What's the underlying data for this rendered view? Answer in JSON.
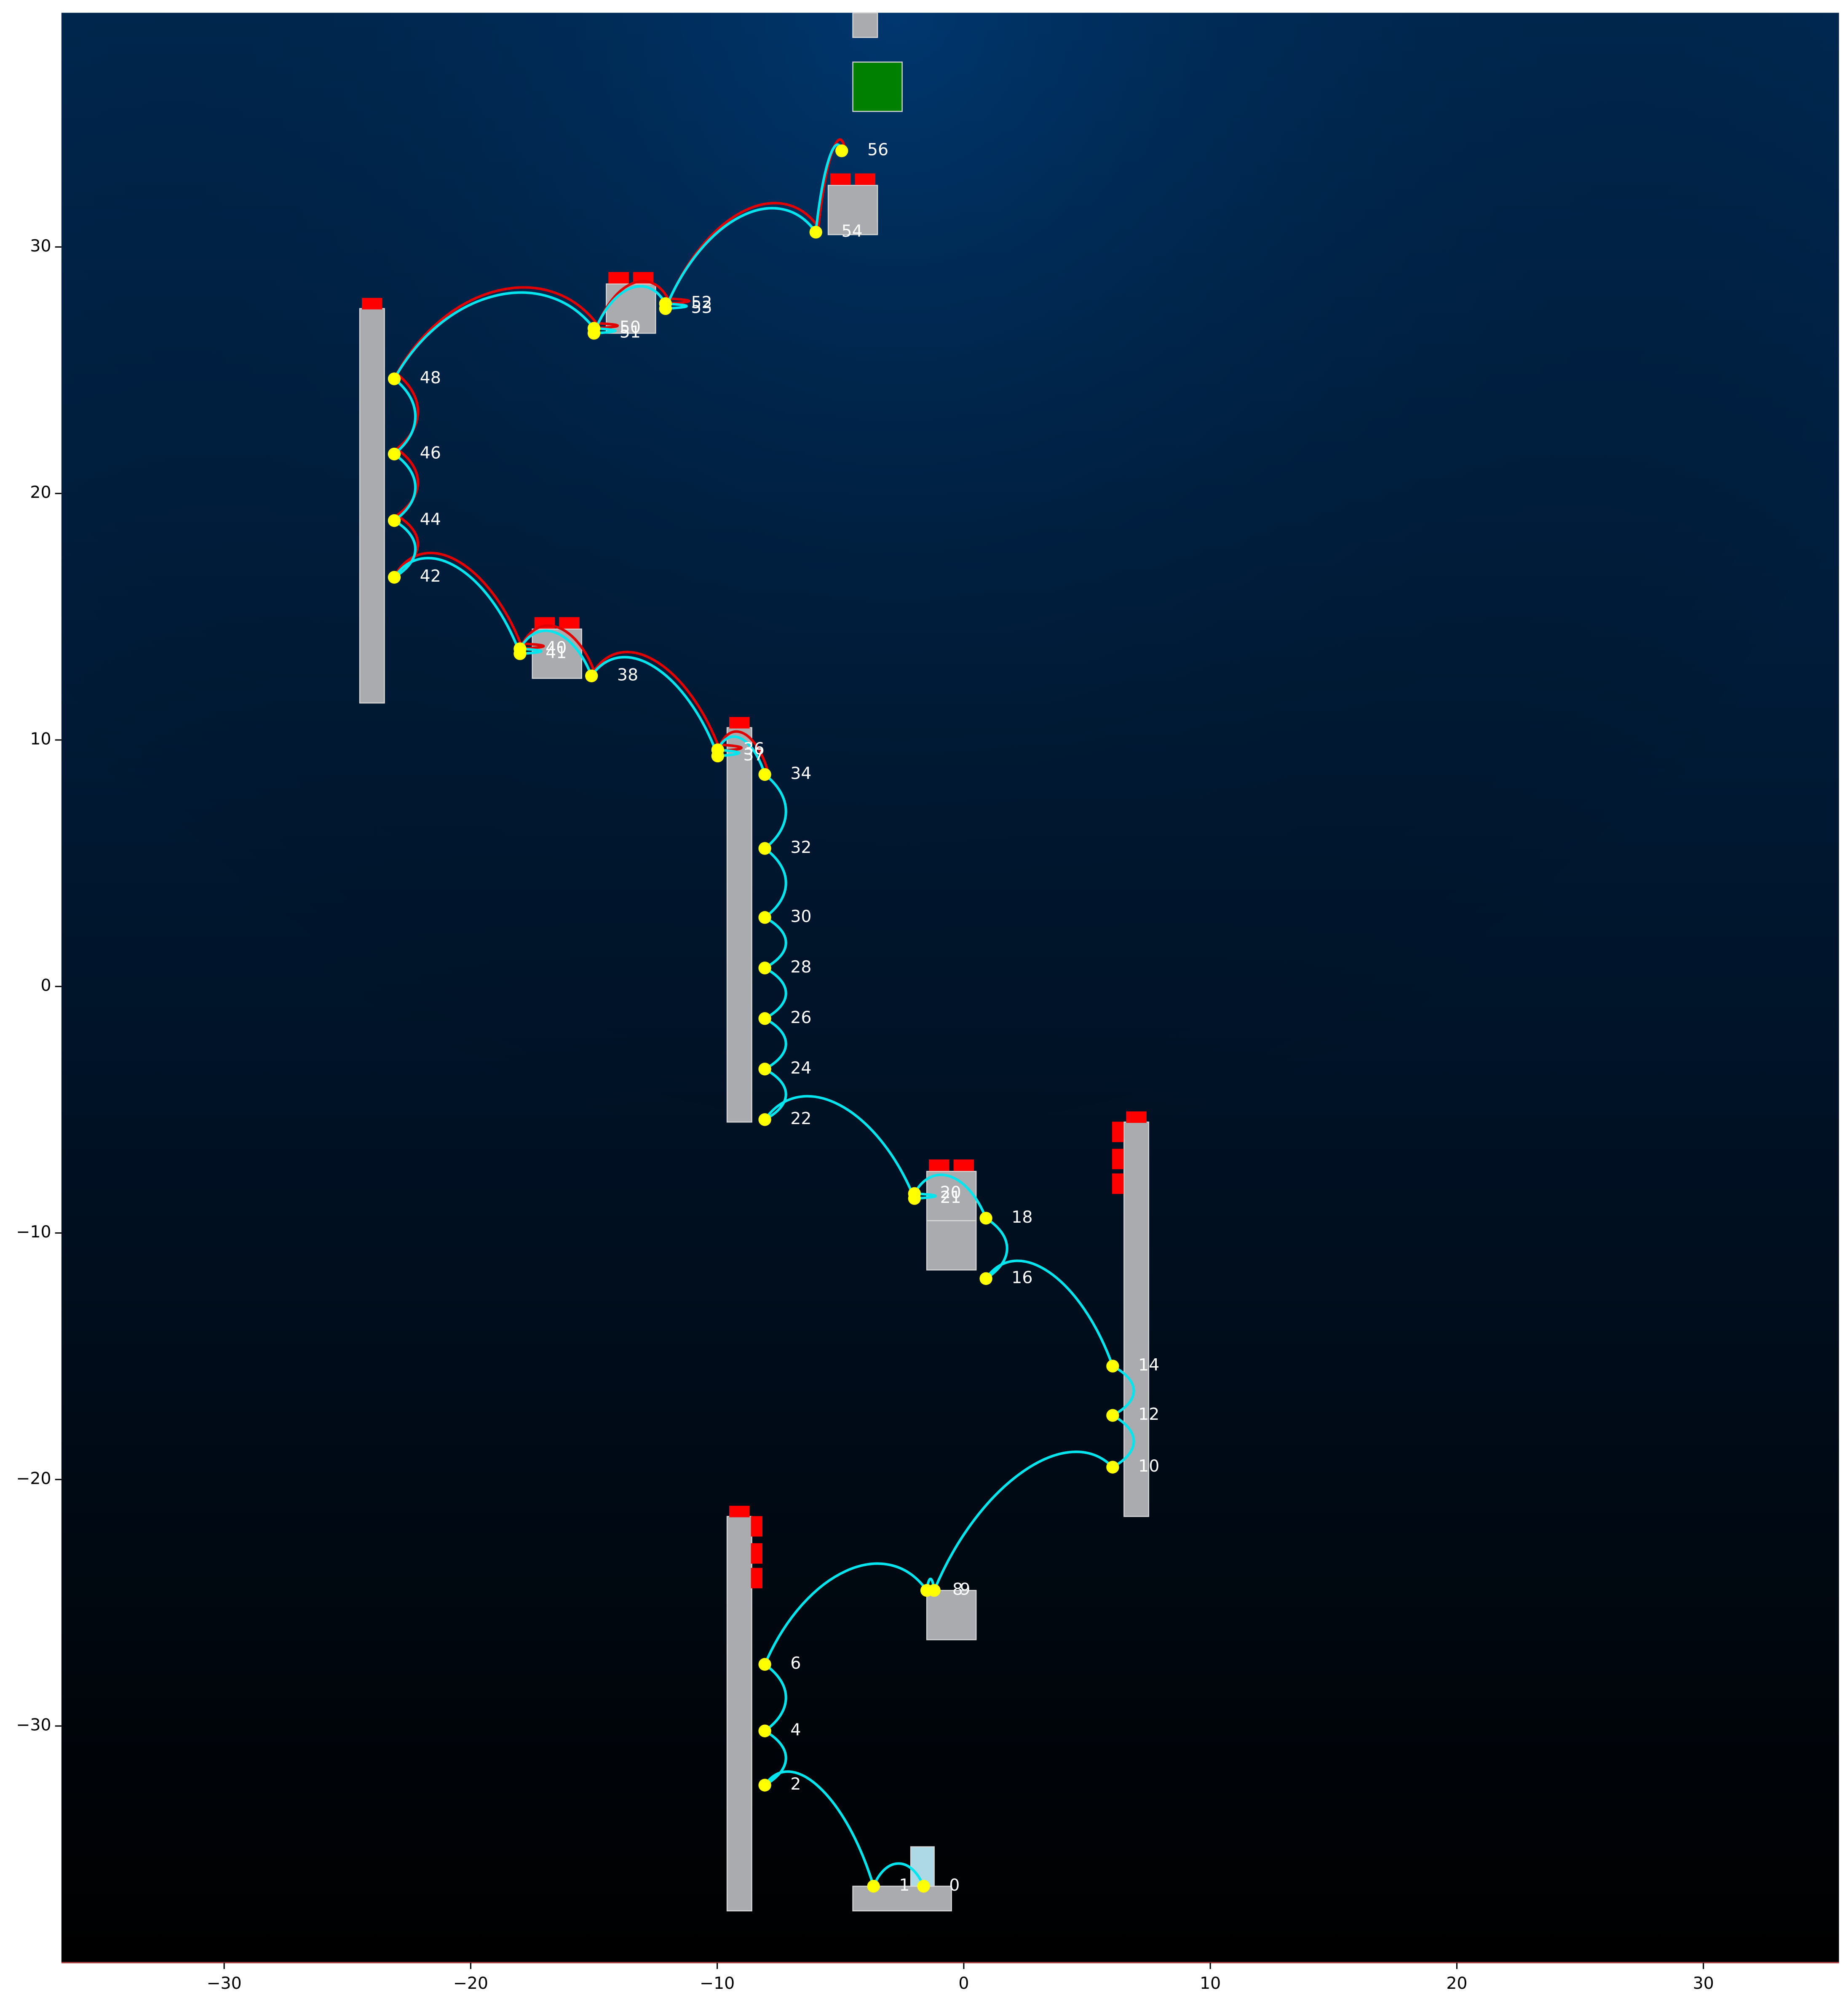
{
  "chart_data": {
    "type": "scatter",
    "xlim": [
      -36.6,
      35.5
    ],
    "ylim": [
      -39.6,
      39.5
    ],
    "xticks": [
      {
        "value": -30,
        "label": "−30"
      },
      {
        "value": -20,
        "label": "−20"
      },
      {
        "value": -10,
        "label": "−10"
      },
      0,
      10,
      20,
      30
    ],
    "yticks": [
      {
        "value": -30,
        "label": "−30"
      },
      {
        "value": -20,
        "label": "−20"
      },
      {
        "value": -10,
        "label": "−10"
      },
      0,
      10,
      20,
      30
    ],
    "line_color": "#00e5ee",
    "alt_line_color": "#e00000",
    "alt_line_from": 20,
    "point_color": "#ffff00",
    "label_color": "#ffffff",
    "points": [
      {
        "label": "0",
        "x": -1.63,
        "y": -36.5
      },
      {
        "label": "1",
        "x": -3.66,
        "y": -36.5
      },
      {
        "label": "2",
        "x": -8.07,
        "y": -32.4
      },
      {
        "label": "4",
        "x": -8.07,
        "y": -30.2
      },
      {
        "label": "6",
        "x": -8.07,
        "y": -27.5
      },
      {
        "label": "8",
        "x": -1.5,
        "y": -24.5
      },
      {
        "label": "9",
        "x": -1.2,
        "y": -24.5
      },
      {
        "label": "10",
        "x": 6.04,
        "y": -19.5
      },
      {
        "label": "12",
        "x": 6.04,
        "y": -17.4
      },
      {
        "label": "14",
        "x": 6.04,
        "y": -15.4
      },
      {
        "label": "16",
        "x": 0.9,
        "y": -11.85
      },
      {
        "label": "18",
        "x": 0.9,
        "y": -9.4
      },
      {
        "label": "20",
        "x": -2.0,
        "y": -8.4
      },
      {
        "label": "21",
        "x": -2.0,
        "y": -8.6
      },
      {
        "label": "22",
        "x": -8.07,
        "y": -5.4
      },
      {
        "label": "24",
        "x": -8.07,
        "y": -3.35
      },
      {
        "label": "26",
        "x": -8.07,
        "y": -1.3
      },
      {
        "label": "28",
        "x": -8.07,
        "y": 0.75
      },
      {
        "label": "30",
        "x": -8.07,
        "y": 2.8
      },
      {
        "label": "32",
        "x": -8.07,
        "y": 5.6
      },
      {
        "label": "34",
        "x": -8.07,
        "y": 8.6
      },
      {
        "label": "36",
        "x": -9.98,
        "y": 9.6
      },
      {
        "label": "37",
        "x": -9.98,
        "y": 9.35
      },
      {
        "label": "38",
        "x": -15.1,
        "y": 12.6
      },
      {
        "label": "40",
        "x": -18.0,
        "y": 13.7
      },
      {
        "label": "41",
        "x": -18.0,
        "y": 13.5
      },
      {
        "label": "42",
        "x": -23.1,
        "y": 16.6
      },
      {
        "label": "44",
        "x": -23.1,
        "y": 18.9
      },
      {
        "label": "46",
        "x": -23.1,
        "y": 21.6
      },
      {
        "label": "48",
        "x": -23.1,
        "y": 24.65
      },
      {
        "label": "50",
        "x": -15.0,
        "y": 26.7
      },
      {
        "label": "51",
        "x": -15.0,
        "y": 26.5
      },
      {
        "label": "52",
        "x": -12.1,
        "y": 27.7
      },
      {
        "label": "53",
        "x": -12.1,
        "y": 27.5
      },
      {
        "label": "54",
        "x": -6.0,
        "y": 30.6
      },
      {
        "label": "56",
        "x": -4.95,
        "y": 33.9
      }
    ],
    "platforms": [
      {
        "x": [
          -9.6,
          -8.6
        ],
        "y": [
          -37.5,
          -21.5
        ],
        "color": "#a9abae"
      },
      {
        "x": [
          -4.5,
          -0.5
        ],
        "y": [
          -37.5,
          -36.5
        ],
        "color": "#a9abae"
      },
      {
        "x": [
          -2.15,
          -1.2
        ],
        "y": [
          -36.5,
          -34.9
        ],
        "color": "#add8e6"
      },
      {
        "x": [
          -1.5,
          0.5
        ],
        "y": [
          -26.5,
          -24.5
        ],
        "color": "#a9abae"
      },
      {
        "x": [
          6.5,
          7.5
        ],
        "y": [
          -21.5,
          -5.5
        ],
        "color": "#a9abae"
      },
      {
        "x": [
          -1.5,
          0.5
        ],
        "y": [
          -11.5,
          -9.5
        ],
        "color": "#a9abae"
      },
      {
        "x": [
          -1.5,
          0.5
        ],
        "y": [
          -9.5,
          -7.5
        ],
        "color": "#a9abae"
      },
      {
        "x": [
          -9.6,
          -8.6
        ],
        "y": [
          -5.5,
          10.5
        ],
        "color": "#a9abae"
      },
      {
        "x": [
          -17.5,
          -15.5
        ],
        "y": [
          12.5,
          14.5
        ],
        "color": "#a9abae"
      },
      {
        "x": [
          -24.5,
          -23.5
        ],
        "y": [
          11.5,
          27.5
        ],
        "color": "#a9abae"
      },
      {
        "x": [
          -14.5,
          -12.5
        ],
        "y": [
          26.5,
          28.5
        ],
        "color": "#a9abae"
      },
      {
        "x": [
          -5.5,
          -3.5
        ],
        "y": [
          30.5,
          32.5
        ],
        "color": "#a9abae"
      },
      {
        "x": [
          -4.5,
          -3.5
        ],
        "y": [
          38.5,
          39.5
        ],
        "color": "#a9abae"
      },
      {
        "x": [
          -4.5,
          -2.5
        ],
        "y": [
          35.5,
          37.5
        ],
        "color": "#008000"
      }
    ],
    "flag_color": "#ff0000",
    "flags_top": [
      [
        -24.0,
        27.7
      ],
      [
        -9.1,
        10.7
      ],
      [
        -9.1,
        -21.3
      ],
      [
        7.0,
        -5.3
      ],
      [
        -1.0,
        -7.25
      ],
      [
        0.0,
        -7.25
      ],
      [
        -17.0,
        14.75
      ],
      [
        -16.0,
        14.75
      ],
      [
        -14.0,
        28.75
      ],
      [
        -13.0,
        28.75
      ],
      [
        -5.0,
        32.75
      ],
      [
        -4.0,
        32.75
      ]
    ],
    "flags_side": [
      [
        -8.4,
        -21.9
      ],
      [
        -8.4,
        -23.0
      ],
      [
        -8.4,
        -24.0
      ],
      [
        6.25,
        -5.9
      ],
      [
        6.25,
        -7.0
      ],
      [
        6.25,
        -8.0
      ]
    ]
  }
}
